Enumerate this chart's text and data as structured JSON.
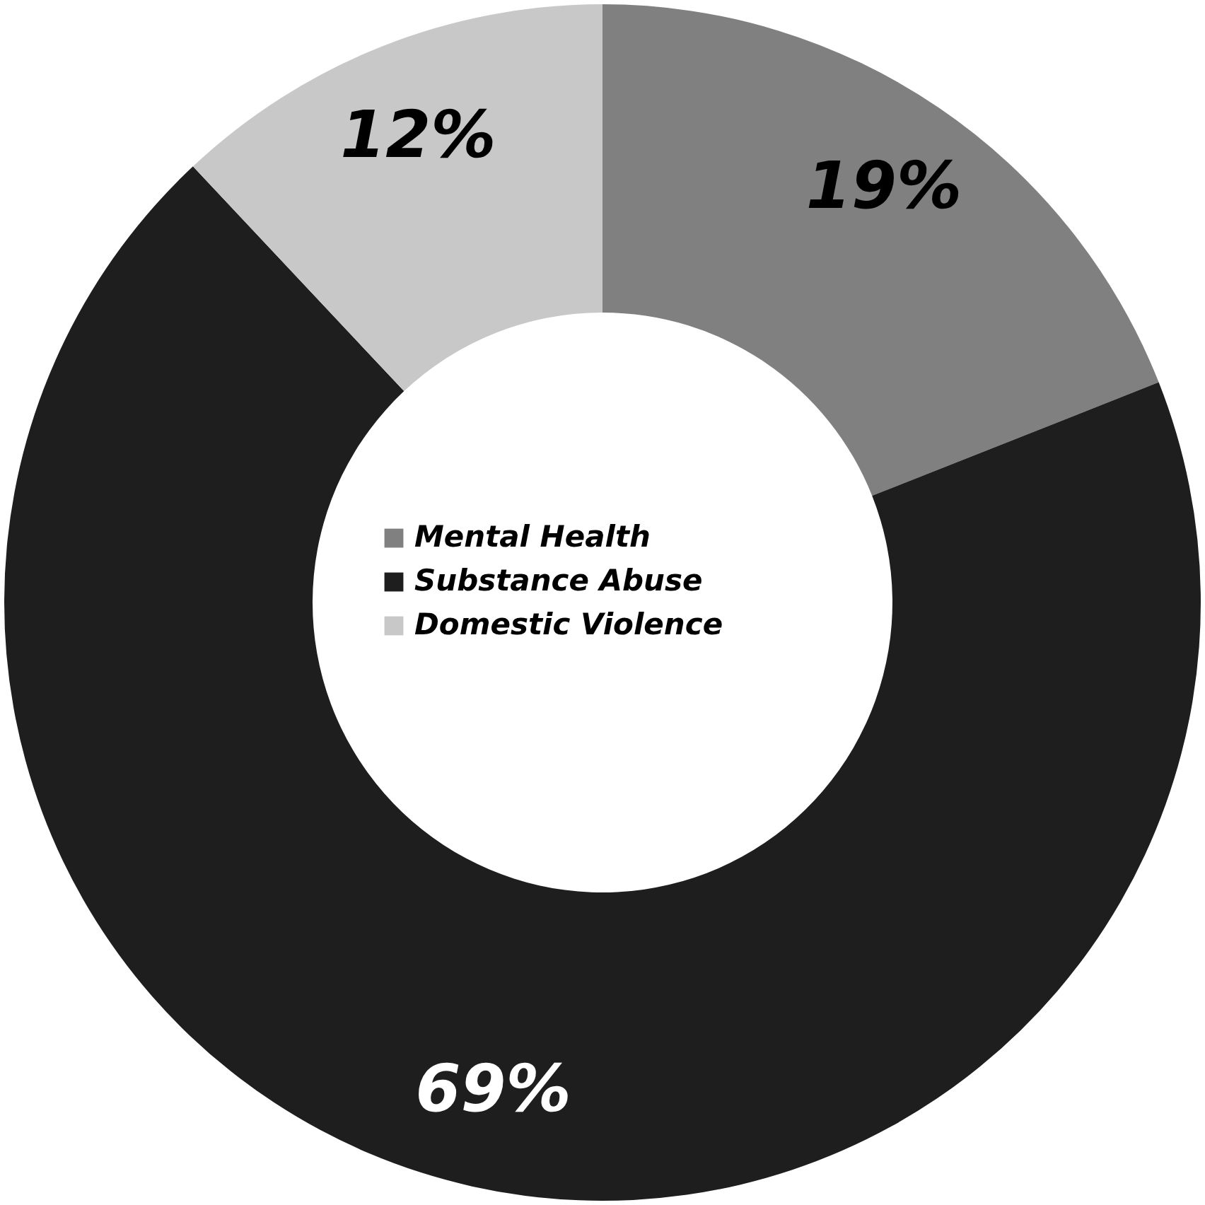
{
  "chart_data": {
    "type": "donut",
    "categories": [
      "Mental Health",
      "Substance Abuse",
      "Domestic Violence"
    ],
    "values": [
      19,
      69,
      12
    ],
    "colors": [
      "#808080",
      "#1e1e1e",
      "#c8c8c8"
    ],
    "value_labels": [
      "19%",
      "69%",
      "12%"
    ],
    "legend": "center"
  }
}
